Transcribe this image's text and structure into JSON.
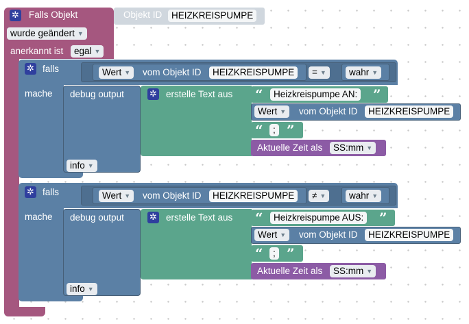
{
  "trigger": {
    "title": "Falls Objekt",
    "object_id_label": "Objekt ID",
    "object_id_value": "HEIZKREISPUMPE",
    "changed_dropdown": "wurde geändert",
    "ack_label": "anerkannt ist",
    "ack_dropdown": "egal"
  },
  "if_blocks": [
    {
      "falls_label": "falls",
      "mache_label": "mache",
      "cond_value_dropdown": "Wert",
      "cond_of_object_label": "vom Objekt ID",
      "cond_object_id": "HEIZKREISPUMPE",
      "operator": "=",
      "compare_value": "wahr",
      "debug_label": "debug output",
      "debug_level": "info",
      "text_label": "erstelle Text aus",
      "text_part_1": "Heizkreispumpe AN:",
      "text_value_dropdown": "Wert",
      "text_of_object_label": "vom Objekt ID",
      "text_object_id": "HEIZKREISPUMPE",
      "text_separator": ";",
      "time_label": "Aktuelle Zeit als",
      "time_format": "SS:mm"
    },
    {
      "falls_label": "falls",
      "mache_label": "mache",
      "cond_value_dropdown": "Wert",
      "cond_of_object_label": "vom Objekt ID",
      "cond_object_id": "HEIZKREISPUMPE",
      "operator": "≠",
      "compare_value": "wahr",
      "debug_label": "debug output",
      "debug_level": "info",
      "text_label": "erstelle Text aus",
      "text_part_1": "Heizkreispumpe AUS:",
      "text_value_dropdown": "Wert",
      "text_of_object_label": "vom Objekt ID",
      "text_object_id": "HEIZKREISPUMPE",
      "text_separator": ";",
      "time_label": "Aktuelle Zeit als",
      "time_format": "SS:mm"
    }
  ],
  "colors": {
    "trigger": "#a5577f",
    "logic": "#5b80a5",
    "text": "#5ba58c",
    "time": "#8c5ba5",
    "mutator": "#2f3f9e"
  },
  "icons": {
    "mutator": "gear-icon",
    "dropdown": "chevron-down-icon",
    "quote": "quote-icon"
  }
}
